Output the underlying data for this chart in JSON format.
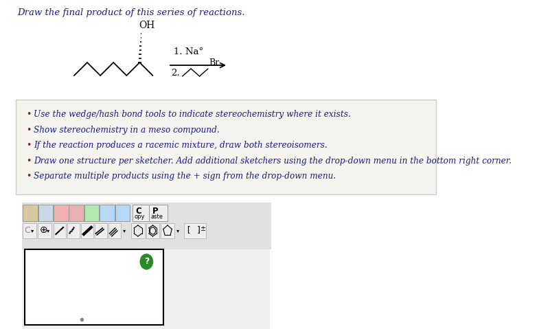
{
  "title": "Draw the final product of this series of reactions.",
  "title_color": "#1a1a8c",
  "title_fontsize": 9.5,
  "bg_color": "#ffffff",
  "bullet_color": "#8b1a1a",
  "bullet_text_color": "#1a1a8c",
  "bullets": [
    "Use the wedge/hash bond tools to indicate stereochemistry where it exists.",
    "Show stereochemistry in a meso compound.",
    "If the reaction produces a racemic mixture, draw both stereoisomers.",
    "Draw one structure per sketcher. Add additional sketchers using the drop-down menu in the bottom right corner.",
    "Separate multiple products using the + sign from the drop-down menu."
  ],
  "reaction_label1": "1. Na°",
  "reaction_label2": "2.",
  "br_label": "Br",
  "box_bg": "#f5f4ee",
  "box_border": "#cccccc",
  "toolbar_bg": "#e0e0e0",
  "sketcher_bg": "#ffffff",
  "sketcher_border": "#000000",
  "page_bg": "#f0f0f0"
}
